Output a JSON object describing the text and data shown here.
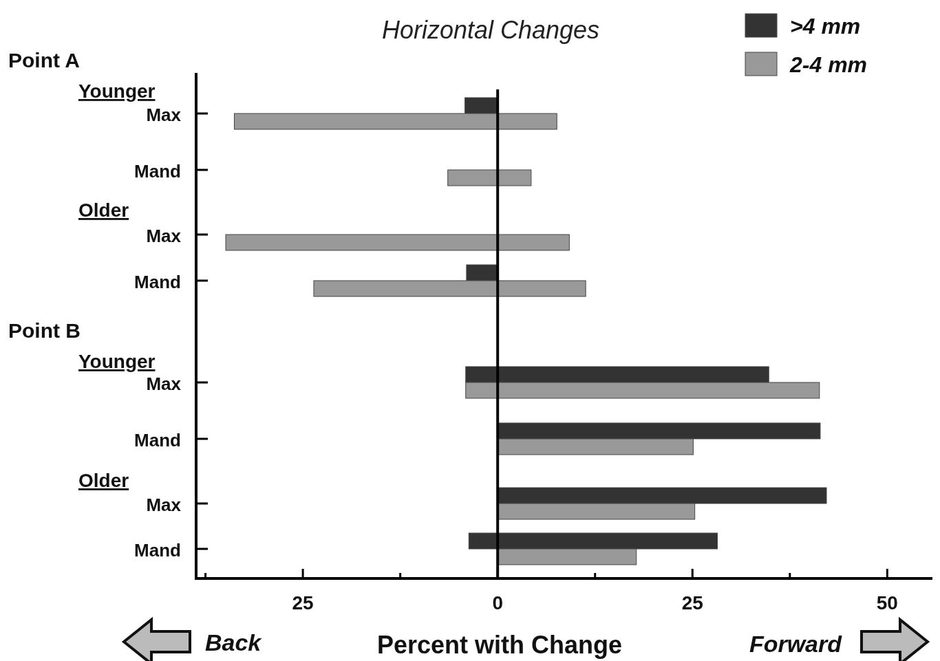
{
  "chart_data": {
    "type": "bar",
    "orientation": "horizontal",
    "title": "Horizontal Changes",
    "xlabel": "Percent with Change",
    "categories": [
      "Max",
      "Mand",
      "Max",
      "Mand",
      "Max",
      "Mand",
      "Max",
      "Mand"
    ],
    "series": [
      {
        "name": ">4 mm",
        "color": "#333333",
        "base": [
          -4.2,
          null,
          null,
          -4.0,
          -4.1,
          0,
          0,
          -3.7
        ],
        "values": [
          4.2,
          null,
          null,
          4.0,
          38.9,
          41.4,
          42.2,
          31.9
        ]
      },
      {
        "name": "2-4 mm",
        "color": "#999999",
        "base": [
          -33.8,
          -6.4,
          -34.9,
          -23.6,
          -4.1,
          0,
          0,
          0
        ],
        "values": [
          41.4,
          10.7,
          44.1,
          34.9,
          45.4,
          25.1,
          25.3,
          17.8
        ]
      }
    ],
    "xlim": [
      -38.7,
      55.8
    ],
    "xticks": [
      {
        "value": -37.5,
        "label": null
      },
      {
        "value": -25,
        "label": "25"
      },
      {
        "value": -12.5,
        "label": null
      },
      0,
      {
        "value": 12.5,
        "label": null
      },
      25,
      {
        "value": 37.5,
        "label": null
      },
      50
    ],
    "ref_lines": [
      {
        "axis": "x",
        "value": 0
      }
    ],
    "legend": "top right",
    "annotations": [
      "Point A",
      "Younger",
      "Older",
      "Point B",
      "Younger",
      "Older",
      "Back",
      "Forward"
    ]
  }
}
